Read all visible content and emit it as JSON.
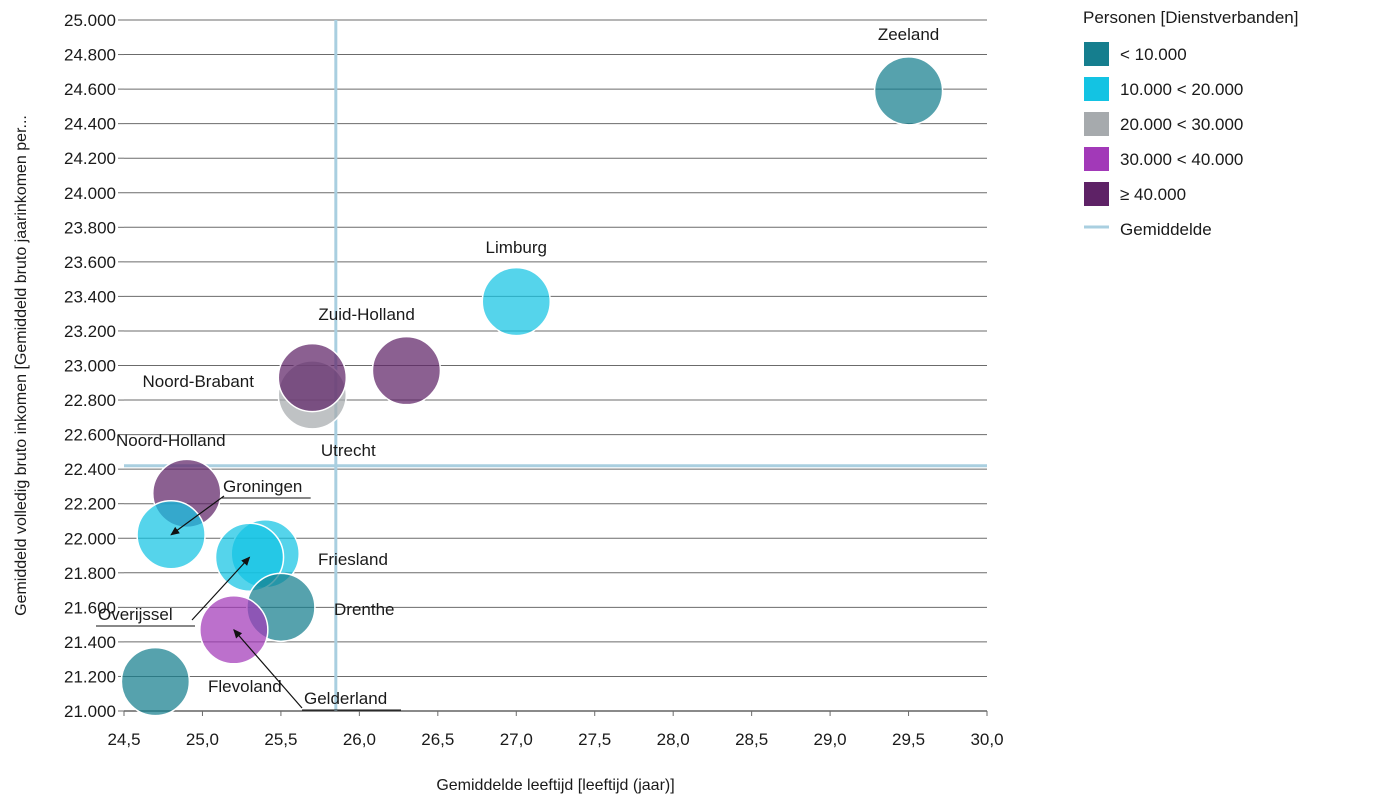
{
  "chart_data": {
    "type": "scatter",
    "xlabel": "Gemiddelde leeftijd [leeftijd (jaar)]",
    "ylabel": "Gemiddeld volledig bruto inkomen [Gemiddeld bruto jaarinkomen per...",
    "xlim": [
      24.5,
      30.0
    ],
    "ylim": [
      21000,
      25000
    ],
    "x_ticks": [
      "24,5",
      "25,0",
      "25,5",
      "26,0",
      "26,5",
      "27,0",
      "27,5",
      "28,0",
      "28,5",
      "29,0",
      "29,5",
      "30,0"
    ],
    "y_ticks": [
      "21.000",
      "21.200",
      "21.400",
      "21.600",
      "21.800",
      "22.000",
      "22.200",
      "22.400",
      "22.600",
      "22.800",
      "23.000",
      "23.200",
      "23.400",
      "23.600",
      "23.800",
      "24.000",
      "24.200",
      "24.400",
      "24.600",
      "24.800",
      "25.000"
    ],
    "grid": true,
    "mean_lines": {
      "label": "Gemiddelde",
      "x": 25.85,
      "y": 22420,
      "color": "#a9cfe0"
    },
    "legend": {
      "title": "Personen [Dienstverbanden]",
      "position": "top-right",
      "items": [
        {
          "label": "< 10.000",
          "color": "#157e8e"
        },
        {
          "label": "10.000 < 20.000",
          "color": "#13c3e3"
        },
        {
          "label": "20.000 < 30.000",
          "color": "#a6aaad"
        },
        {
          "label": "30.000 < 40.000",
          "color": "#a239b8"
        },
        {
          "label": "≥ 40.000",
          "color": "#5e2266"
        },
        {
          "label": "Gemiddelde",
          "color": "#a9cfe0"
        }
      ]
    },
    "points": [
      {
        "name": "Zeeland",
        "x": 29.5,
        "y": 24590,
        "class": 0
      },
      {
        "name": "Limburg",
        "x": 27.0,
        "y": 23370,
        "class": 1
      },
      {
        "name": "Zuid-Holland",
        "x": 26.3,
        "y": 22970,
        "class": 4
      },
      {
        "name": "Utrecht",
        "x": 25.7,
        "y": 22830,
        "class": 2
      },
      {
        "name": "Noord-Brabant",
        "x": 25.7,
        "y": 22930,
        "class": 4
      },
      {
        "name": "Noord-Holland",
        "x": 24.9,
        "y": 22260,
        "class": 4
      },
      {
        "name": "Groningen",
        "x": 24.8,
        "y": 22020,
        "class": 1
      },
      {
        "name": "Friesland",
        "x": 25.4,
        "y": 21910,
        "class": 1
      },
      {
        "name": "Overijssel",
        "x": 25.3,
        "y": 21890,
        "class": 1
      },
      {
        "name": "Drenthe",
        "x": 25.5,
        "y": 21600,
        "class": 0
      },
      {
        "name": "Gelderland",
        "x": 25.2,
        "y": 21470,
        "class": 3
      },
      {
        "name": "Flevoland",
        "x": 24.7,
        "y": 21170,
        "class": 0
      }
    ]
  }
}
